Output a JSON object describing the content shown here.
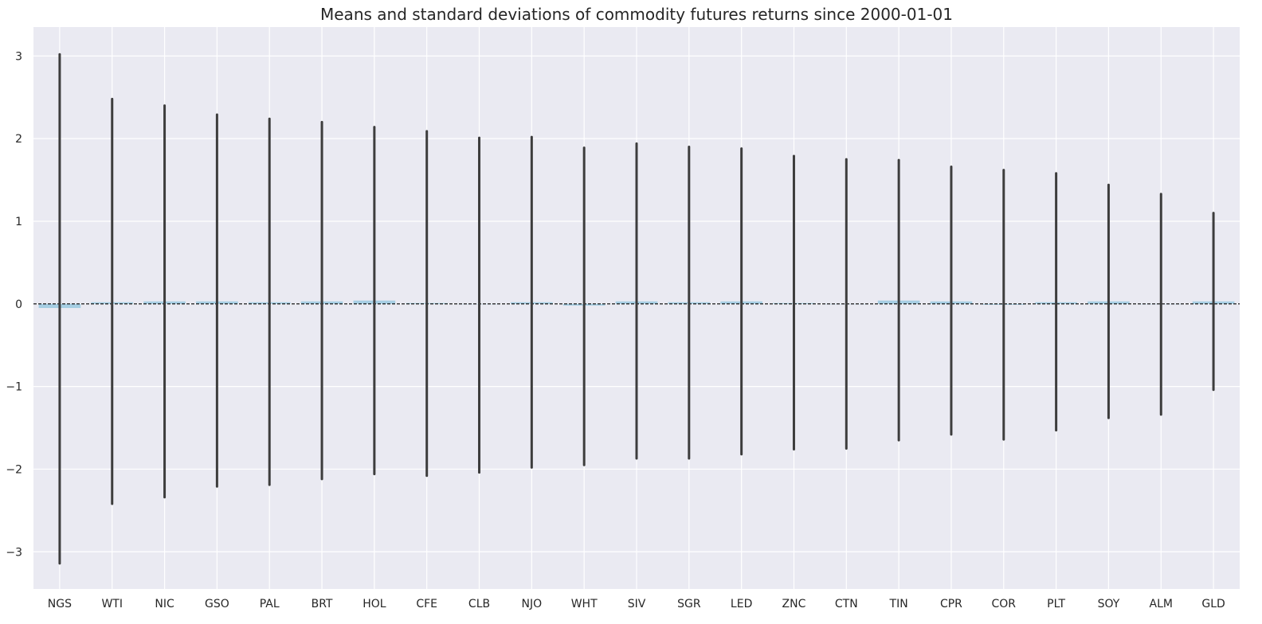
{
  "chart_data": {
    "type": "bar",
    "title": "Means and standard deviations of commodity futures returns since 2000-01-01",
    "xlabel": "",
    "ylabel": "",
    "categories": [
      "NGS",
      "WTI",
      "NIC",
      "GSO",
      "PAL",
      "BRT",
      "HOL",
      "CFE",
      "CLB",
      "NJO",
      "WHT",
      "SIV",
      "SGR",
      "LED",
      "ZNC",
      "CTN",
      "TIN",
      "CPR",
      "COR",
      "PLT",
      "SOY",
      "ALM",
      "GLD"
    ],
    "series": [
      {
        "values": [
          -0.05,
          0.02,
          0.03,
          0.03,
          0.02,
          0.03,
          0.04,
          0.01,
          0.0,
          0.02,
          -0.02,
          0.03,
          0.02,
          0.03,
          0.01,
          0.0,
          0.04,
          0.03,
          -0.01,
          0.02,
          0.03,
          0.0,
          0.03
        ],
        "error_low": [
          -3.14,
          -2.42,
          -2.34,
          -2.21,
          -2.19,
          -2.12,
          -2.06,
          -2.08,
          -2.04,
          -1.98,
          -1.95,
          -1.87,
          -1.87,
          -1.82,
          -1.76,
          -1.75,
          -1.65,
          -1.58,
          -1.64,
          -1.53,
          -1.38,
          -1.34,
          -1.04
        ],
        "error_high": [
          3.02,
          2.48,
          2.4,
          2.29,
          2.24,
          2.2,
          2.14,
          2.09,
          2.01,
          2.02,
          1.89,
          1.94,
          1.9,
          1.88,
          1.79,
          1.75,
          1.74,
          1.66,
          1.62,
          1.58,
          1.44,
          1.33,
          1.1
        ]
      }
    ],
    "ylim": [
      -3.45,
      3.35
    ],
    "yticks": [
      3,
      2,
      1,
      0,
      -1,
      -2,
      -3
    ],
    "ytick_labels": [
      "3",
      "2",
      "1",
      "0",
      "−1",
      "−2",
      "−3"
    ],
    "grid": true,
    "reference_line": 0,
    "colors": {
      "background": "#eaeaf2",
      "grid": "#ffffff",
      "bar": "#a6cee3",
      "error_bar": "#3d3d3d",
      "reference_line": "#000000",
      "text": "#262626"
    }
  }
}
